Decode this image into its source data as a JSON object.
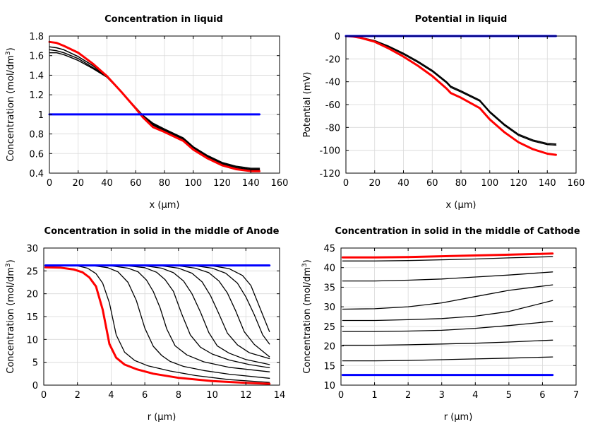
{
  "chart_data": [
    {
      "type": "line",
      "title": "Concentration in liquid",
      "xlabel": "x (μm)",
      "ylabel": "Concentration (mol/dm³)",
      "xlim": [
        0,
        160
      ],
      "ylim": [
        0.4,
        1.8
      ],
      "xticks": [
        0,
        20,
        40,
        60,
        80,
        100,
        120,
        140,
        160
      ],
      "yticks": [
        0.4,
        0.6,
        0.8,
        1,
        1.2,
        1.4,
        1.6,
        1.8
      ],
      "grid": true,
      "series": [
        {
          "color": "#000000",
          "width": 1.5,
          "x": [
            0,
            5,
            10,
            20,
            30,
            40,
            50,
            60,
            65,
            72,
            80,
            93,
            100,
            110,
            120,
            130,
            140,
            146
          ],
          "y": [
            1.63,
            1.63,
            1.61,
            1.55,
            1.47,
            1.38,
            1.23,
            1.07,
            0.99,
            0.91,
            0.85,
            0.76,
            0.67,
            0.58,
            0.51,
            0.47,
            0.45,
            0.45
          ]
        },
        {
          "color": "#000000",
          "width": 1.5,
          "x": [
            0,
            5,
            10,
            20,
            30,
            40,
            50,
            60,
            65,
            72,
            80,
            93,
            100,
            110,
            120,
            130,
            140,
            146
          ],
          "y": [
            1.66,
            1.65,
            1.63,
            1.57,
            1.48,
            1.38,
            1.23,
            1.07,
            0.99,
            0.9,
            0.84,
            0.75,
            0.66,
            0.57,
            0.5,
            0.46,
            0.44,
            0.44
          ]
        },
        {
          "color": "#000000",
          "width": 1.5,
          "x": [
            0,
            5,
            10,
            20,
            30,
            40,
            50,
            60,
            65,
            72,
            80,
            93,
            100,
            110,
            120,
            130,
            140,
            146
          ],
          "y": [
            1.69,
            1.68,
            1.66,
            1.59,
            1.5,
            1.38,
            1.23,
            1.06,
            0.98,
            0.89,
            0.83,
            0.74,
            0.65,
            0.56,
            0.49,
            0.45,
            0.43,
            0.43
          ]
        },
        {
          "color": "#ff0000",
          "width": 3,
          "x": [
            0,
            5,
            10,
            20,
            30,
            40,
            50,
            60,
            65,
            72,
            80,
            93,
            100,
            110,
            120,
            130,
            140,
            146
          ],
          "y": [
            1.74,
            1.73,
            1.7,
            1.63,
            1.52,
            1.39,
            1.23,
            1.06,
            0.97,
            0.87,
            0.82,
            0.73,
            0.64,
            0.55,
            0.48,
            0.44,
            0.42,
            0.42
          ]
        },
        {
          "color": "#0000ff",
          "width": 3,
          "x": [
            0,
            146
          ],
          "y": [
            1.0,
            1.0
          ]
        }
      ]
    },
    {
      "type": "line",
      "title": "Potential in liquid",
      "xlabel": "x (μm)",
      "ylabel": "Potential (mV)",
      "xlim": [
        0,
        160
      ],
      "ylim": [
        -120,
        0
      ],
      "xticks": [
        0,
        20,
        40,
        60,
        80,
        100,
        120,
        140,
        160
      ],
      "yticks": [
        0,
        -20,
        -40,
        -60,
        -80,
        -100,
        -120
      ],
      "grid": true,
      "series": [
        {
          "color": "#000000",
          "width": 1.5,
          "x": [
            0,
            5,
            10,
            20,
            30,
            40,
            50,
            60,
            70,
            73,
            80,
            93,
            100,
            110,
            120,
            130,
            140,
            146
          ],
          "y": [
            0,
            -0.4,
            -1.2,
            -4,
            -9,
            -15,
            -22,
            -30,
            -40,
            -44,
            -48,
            -56,
            -66,
            -77,
            -86,
            -91,
            -94,
            -94.5
          ]
        },
        {
          "color": "#000000",
          "width": 1.5,
          "x": [
            0,
            5,
            10,
            20,
            30,
            40,
            50,
            60,
            70,
            73,
            80,
            93,
            100,
            110,
            120,
            130,
            140,
            146
          ],
          "y": [
            0,
            -0.45,
            -1.3,
            -4.5,
            -9.5,
            -16,
            -23,
            -31,
            -41,
            -45,
            -49,
            -57,
            -67,
            -78,
            -87,
            -92,
            -95,
            -95.5
          ]
        },
        {
          "color": "#ff0000",
          "width": 3,
          "x": [
            0,
            5,
            10,
            20,
            30,
            40,
            50,
            60,
            70,
            73,
            80,
            93,
            100,
            110,
            120,
            130,
            140,
            146
          ],
          "y": [
            0,
            -0.5,
            -1.5,
            -5,
            -11,
            -18,
            -26,
            -35,
            -46,
            -50,
            -54,
            -63,
            -73,
            -84,
            -93,
            -99,
            -103,
            -104
          ]
        },
        {
          "color": "#0000ff",
          "width": 3,
          "x": [
            0,
            146
          ],
          "y": [
            0,
            0
          ]
        }
      ]
    },
    {
      "type": "line",
      "title": "Concentration in solid in the middle of Anode",
      "xlabel": "r (μm)",
      "ylabel": "Concentration (mol/dm³)",
      "xlim": [
        0,
        14
      ],
      "ylim": [
        0,
        30
      ],
      "xticks": [
        0,
        2,
        4,
        6,
        8,
        10,
        12,
        14
      ],
      "yticks": [
        0,
        5,
        10,
        15,
        20,
        25,
        30
      ],
      "grid": true,
      "series": [
        {
          "color": "#000000",
          "width": 1.3,
          "x": [
            0.1,
            2,
            2.6,
            3.1,
            3.5,
            3.9,
            4.3,
            4.8,
            5.4,
            6.2,
            7.5,
            9,
            11,
            13.4
          ],
          "y": [
            26.2,
            26.1,
            25.6,
            24.4,
            22.3,
            18,
            11,
            7.2,
            5.4,
            4.2,
            3.1,
            2.1,
            1.2,
            0.6
          ]
        },
        {
          "color": "#000000",
          "width": 1.3,
          "x": [
            0.1,
            3,
            3.8,
            4.4,
            5,
            5.5,
            6,
            6.5,
            7,
            7.5,
            8.3,
            9.5,
            11,
            13.4
          ],
          "y": [
            26.2,
            26.1,
            25.7,
            24.8,
            22.5,
            18.5,
            12.5,
            8.5,
            6.5,
            5.2,
            4.1,
            3.2,
            2.4,
            1.5
          ]
        },
        {
          "color": "#000000",
          "width": 1.3,
          "x": [
            0.1,
            4,
            5,
            5.6,
            6.1,
            6.5,
            6.9,
            7.3,
            7.8,
            8.5,
            9.5,
            11,
            13.4
          ],
          "y": [
            26.2,
            26.1,
            25.6,
            24.8,
            23,
            20.5,
            17,
            12.3,
            8.6,
            6.6,
            5.1,
            3.9,
            2.9
          ]
        },
        {
          "color": "#000000",
          "width": 1.3,
          "x": [
            0.1,
            5,
            6,
            6.7,
            7.2,
            7.7,
            8.2,
            8.7,
            9.3,
            10,
            11,
            12.2,
            13.4
          ],
          "y": [
            26.2,
            26.1,
            25.7,
            24.7,
            23.1,
            20.5,
            15.5,
            11,
            8.3,
            6.8,
            5.5,
            4.5,
            3.8
          ]
        },
        {
          "color": "#000000",
          "width": 1.3,
          "x": [
            0.1,
            6,
            7,
            7.7,
            8.3,
            8.8,
            9.3,
            9.8,
            10.3,
            11,
            12,
            13.4
          ],
          "y": [
            26.2,
            26.1,
            25.6,
            24.6,
            22.8,
            20,
            16,
            11.5,
            8.6,
            7,
            5.6,
            4.5
          ]
        },
        {
          "color": "#000000",
          "width": 1.3,
          "x": [
            0.1,
            7,
            8,
            8.8,
            9.4,
            9.9,
            10.4,
            10.9,
            11.5,
            12.2,
            13.4
          ],
          "y": [
            26.2,
            26.1,
            25.6,
            24.5,
            22.6,
            19.6,
            15.6,
            11.4,
            8.8,
            7.1,
            5.8
          ]
        },
        {
          "color": "#000000",
          "width": 1.3,
          "x": [
            0.1,
            8,
            9,
            9.8,
            10.4,
            10.9,
            11.4,
            11.9,
            12.5,
            13.4
          ],
          "y": [
            26.2,
            26.1,
            25.6,
            24.6,
            22.8,
            20.2,
            16.2,
            11.7,
            8.9,
            6.2
          ]
        },
        {
          "color": "#000000",
          "width": 1.3,
          "x": [
            0.1,
            9,
            10,
            10.8,
            11.5,
            12,
            12.5,
            13,
            13.4
          ],
          "y": [
            26.2,
            26.1,
            25.6,
            24.5,
            22.3,
            19.3,
            15.4,
            11,
            9
          ]
        },
        {
          "color": "#000000",
          "width": 1.3,
          "x": [
            0.1,
            10,
            11,
            11.8,
            12.3,
            12.8,
            13.4
          ],
          "y": [
            26.2,
            26.1,
            25.5,
            24,
            21.8,
            17.2,
            11.7
          ]
        },
        {
          "color": "#ff0000",
          "width": 3,
          "x": [
            0.1,
            1,
            1.8,
            2.3,
            2.7,
            3.1,
            3.5,
            3.9,
            4.3,
            4.8,
            5.5,
            6.5,
            8,
            10,
            12,
            13.4
          ],
          "y": [
            25.8,
            25.7,
            25.3,
            24.7,
            23.6,
            21.6,
            16.5,
            9,
            6,
            4.5,
            3.5,
            2.5,
            1.6,
            0.9,
            0.5,
            0.3
          ]
        },
        {
          "color": "#0000ff",
          "width": 3,
          "x": [
            0.1,
            13.4
          ],
          "y": [
            26.2,
            26.2
          ]
        }
      ]
    },
    {
      "type": "line",
      "title": "Concentration in solid in the middle of Cathode",
      "xlabel": "r (μm)",
      "ylabel": "Concentration (mol/dm³)",
      "xlim": [
        0,
        7
      ],
      "ylim": [
        10,
        45
      ],
      "xticks": [
        0,
        1,
        2,
        3,
        4,
        5,
        6,
        7
      ],
      "yticks": [
        10,
        15,
        20,
        25,
        30,
        35,
        40,
        45
      ],
      "grid": true,
      "series": [
        {
          "color": "#000000",
          "width": 1.3,
          "x": [
            0.05,
            1,
            2,
            3,
            4,
            5,
            6.3
          ],
          "y": [
            16.2,
            16.2,
            16.3,
            16.5,
            16.7,
            16.9,
            17.2
          ]
        },
        {
          "color": "#000000",
          "width": 1.3,
          "x": [
            0.05,
            1,
            2,
            3,
            4,
            5,
            6.3
          ],
          "y": [
            20.2,
            20.2,
            20.3,
            20.5,
            20.7,
            21.0,
            21.5
          ]
        },
        {
          "color": "#000000",
          "width": 1.3,
          "x": [
            0.05,
            1,
            2,
            3,
            4,
            5,
            6.3
          ],
          "y": [
            23.7,
            23.7,
            23.8,
            24.0,
            24.5,
            25.2,
            26.3
          ]
        },
        {
          "color": "#000000",
          "width": 1.3,
          "x": [
            0.05,
            1,
            2,
            3,
            4,
            5,
            6.3
          ],
          "y": [
            26.5,
            26.5,
            26.7,
            27.0,
            27.6,
            28.8,
            31.6
          ]
        },
        {
          "color": "#000000",
          "width": 1.3,
          "x": [
            0.05,
            1,
            2,
            3,
            4,
            5,
            6.3
          ],
          "y": [
            29.4,
            29.5,
            30.0,
            31.0,
            32.6,
            34.2,
            35.6
          ]
        },
        {
          "color": "#000000",
          "width": 1.3,
          "x": [
            0.05,
            1,
            2,
            3,
            4,
            5,
            6.3
          ],
          "y": [
            36.6,
            36.6,
            36.8,
            37.1,
            37.6,
            38.1,
            38.9
          ]
        },
        {
          "color": "#000000",
          "width": 1.3,
          "x": [
            0.05,
            1,
            2,
            3,
            4,
            5,
            6.3
          ],
          "y": [
            41.7,
            41.7,
            41.8,
            42.0,
            42.2,
            42.5,
            42.8
          ]
        },
        {
          "color": "#ff0000",
          "width": 3,
          "x": [
            0.05,
            1,
            2,
            3,
            4,
            5,
            6.3
          ],
          "y": [
            42.6,
            42.6,
            42.7,
            42.9,
            43.1,
            43.3,
            43.6
          ]
        },
        {
          "color": "#0000ff",
          "width": 3,
          "x": [
            0.05,
            6.3
          ],
          "y": [
            12.6,
            12.6
          ]
        }
      ]
    }
  ]
}
